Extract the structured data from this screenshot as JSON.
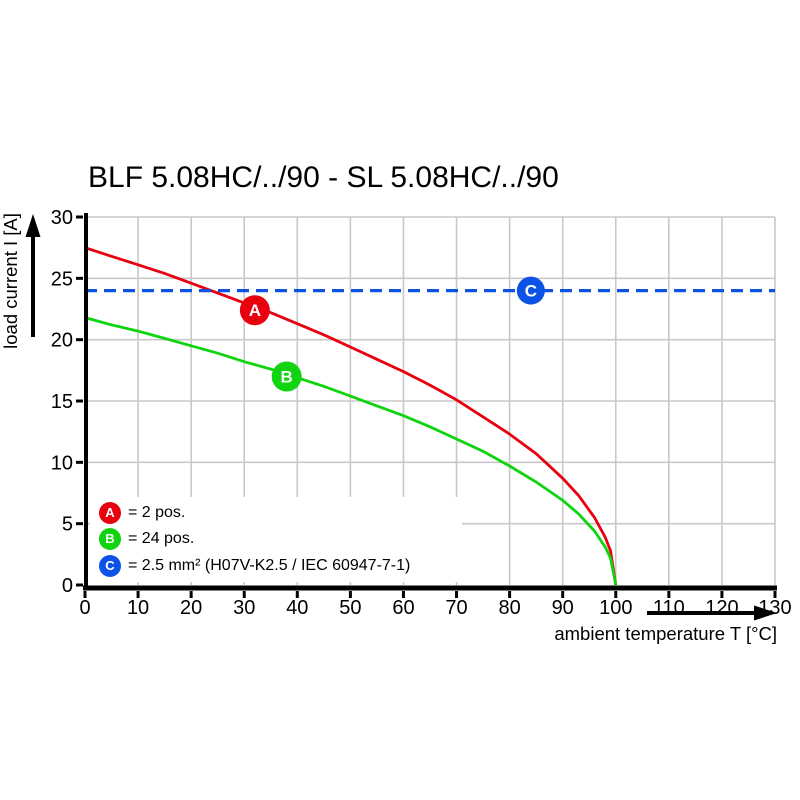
{
  "title": "BLF 5.08HC/../90 - SL 5.08HC/../90",
  "chart_data": {
    "type": "line",
    "title": "BLF 5.08HC/../90 - SL 5.08HC/../90",
    "xlabel": "ambient temperature T [°C]",
    "ylabel": "load current I [A]",
    "xlim": [
      0,
      130
    ],
    "ylim": [
      0,
      30
    ],
    "xticks": [
      0,
      10,
      20,
      30,
      40,
      50,
      60,
      70,
      80,
      90,
      100,
      110,
      120,
      130
    ],
    "yticks": [
      0,
      5,
      10,
      15,
      20,
      25,
      30
    ],
    "grid": true,
    "colors": {
      "grid": "#c8c8c8",
      "axis": "#000000",
      "red": "#e8000f",
      "green": "#0fd40f",
      "blue": "#0d52e6"
    },
    "series": [
      {
        "name": "A",
        "label": "2 pos.",
        "color": "#e8000f",
        "line_style": "solid",
        "width": 2.8,
        "points": [
          [
            0,
            27.5
          ],
          [
            5,
            26.8
          ],
          [
            10,
            26.1
          ],
          [
            15,
            25.4
          ],
          [
            20,
            24.6
          ],
          [
            25,
            23.8
          ],
          [
            30,
            23.0
          ],
          [
            35,
            22.2
          ],
          [
            40,
            21.3
          ],
          [
            45,
            20.4
          ],
          [
            50,
            19.4
          ],
          [
            55,
            18.4
          ],
          [
            60,
            17.4
          ],
          [
            65,
            16.3
          ],
          [
            70,
            15.1
          ],
          [
            75,
            13.7
          ],
          [
            80,
            12.3
          ],
          [
            85,
            10.7
          ],
          [
            90,
            8.7
          ],
          [
            93,
            7.3
          ],
          [
            96,
            5.5
          ],
          [
            98,
            3.9
          ],
          [
            99,
            2.8
          ],
          [
            100,
            0
          ]
        ]
      },
      {
        "name": "B",
        "label": "24 pos.",
        "color": "#0fd40f",
        "line_style": "solid",
        "width": 2.8,
        "points": [
          [
            0,
            21.8
          ],
          [
            5,
            21.2
          ],
          [
            10,
            20.7
          ],
          [
            15,
            20.1
          ],
          [
            20,
            19.5
          ],
          [
            25,
            18.9
          ],
          [
            30,
            18.2
          ],
          [
            35,
            17.6
          ],
          [
            40,
            16.9
          ],
          [
            45,
            16.2
          ],
          [
            50,
            15.4
          ],
          [
            55,
            14.6
          ],
          [
            60,
            13.8
          ],
          [
            65,
            12.9
          ],
          [
            70,
            11.9
          ],
          [
            75,
            10.9
          ],
          [
            80,
            9.7
          ],
          [
            85,
            8.4
          ],
          [
            90,
            6.9
          ],
          [
            93,
            5.8
          ],
          [
            96,
            4.4
          ],
          [
            98,
            3.1
          ],
          [
            99,
            2.2
          ],
          [
            100,
            0
          ]
        ]
      },
      {
        "name": "C",
        "label": "2.5 mm² (H07V-K2.5 / IEC 60947-7-1)",
        "color": "#0d52e6",
        "line_style": "dashed",
        "width": 3.2,
        "points": [
          [
            0,
            24
          ],
          [
            130,
            24
          ]
        ]
      }
    ],
    "markers": [
      {
        "letter": "A",
        "t": 32,
        "i": 22.4,
        "radius": 15,
        "color": "#e8000f"
      },
      {
        "letter": "B",
        "t": 38,
        "i": 17.0,
        "radius": 15,
        "color": "#0fd40f"
      },
      {
        "letter": "C",
        "t": 84,
        "i": 24.0,
        "radius": 14,
        "color": "#0d52e6"
      }
    ],
    "legend": [
      {
        "letter": "A",
        "text": "= 2 pos.",
        "color": "#e8000f"
      },
      {
        "letter": "B",
        "text": "= 24 pos.",
        "color": "#0fd40f"
      },
      {
        "letter": "C",
        "text": "= 2.5 mm² (H07V-K2.5 / IEC 60947-7-1)",
        "color": "#0d52e6"
      }
    ]
  }
}
